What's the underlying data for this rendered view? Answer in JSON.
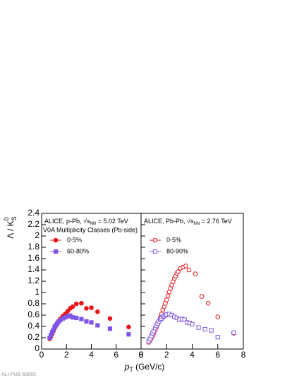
{
  "chart_data": [
    {
      "type": "scatter",
      "annotation": {
        "text": "ALICE, p-Pb, √s",
        "sub": "NN",
        "after": " = 5.02 TeV"
      },
      "subtitle": "V0A Multiplicity Classes (Pb-side)",
      "ylabel": {
        "main": "Λ / K",
        "sup": "0",
        "sub": "S"
      },
      "xlim": [
        0,
        8
      ],
      "ylim": [
        0,
        2.4
      ],
      "xticks": [
        0,
        2,
        4,
        6,
        8
      ],
      "yticks": [
        0,
        0.2,
        0.4,
        0.6,
        0.8,
        1,
        1.2,
        1.4,
        1.6,
        1.8,
        2,
        2.2,
        2.4
      ],
      "series": [
        {
          "name": "0-5%",
          "color": "#e8151b",
          "marker": "filled-circle",
          "x": [
            0.65,
            0.75,
            0.85,
            0.95,
            1.05,
            1.15,
            1.25,
            1.35,
            1.5,
            1.7,
            1.9,
            2.1,
            2.3,
            2.5,
            2.8,
            3.2,
            3.6,
            4.0,
            4.5,
            5.5,
            7.0
          ],
          "values": [
            0.18,
            0.22,
            0.27,
            0.32,
            0.37,
            0.41,
            0.45,
            0.49,
            0.53,
            0.58,
            0.62,
            0.67,
            0.72,
            0.75,
            0.8,
            0.81,
            0.72,
            0.73,
            0.66,
            0.54,
            0.39
          ]
        },
        {
          "name": "60-80%",
          "color": "#7f55e6",
          "marker": "filled-square",
          "x": [
            0.65,
            0.75,
            0.85,
            0.95,
            1.05,
            1.15,
            1.25,
            1.35,
            1.5,
            1.7,
            1.9,
            2.1,
            2.3,
            2.5,
            2.8,
            3.2,
            3.6,
            4.0,
            4.5,
            5.5,
            7.0
          ],
          "values": [
            0.2,
            0.25,
            0.3,
            0.34,
            0.39,
            0.42,
            0.45,
            0.48,
            0.51,
            0.54,
            0.56,
            0.58,
            0.59,
            0.56,
            0.55,
            0.53,
            0.49,
            0.47,
            0.42,
            0.36,
            0.26
          ]
        }
      ]
    },
    {
      "type": "scatter",
      "annotation": {
        "text": "ALICE, Pb-Pb, √s",
        "sub": "NN",
        "after": " = 2.76 TeV"
      },
      "xlim": [
        0,
        8
      ],
      "ylim": [
        0,
        2.4
      ],
      "xticks": [
        0,
        2,
        4,
        6,
        8
      ],
      "series": [
        {
          "name": "0-5%",
          "color": "#e8151b",
          "marker": "open-circle",
          "x": [
            0.6,
            0.7,
            0.8,
            0.9,
            1.0,
            1.1,
            1.2,
            1.3,
            1.4,
            1.5,
            1.6,
            1.7,
            1.8,
            1.9,
            2.0,
            2.1,
            2.2,
            2.3,
            2.4,
            2.5,
            2.6,
            2.7,
            2.8,
            2.9,
            3.1,
            3.3,
            3.5,
            3.75,
            4.25,
            4.75,
            5.25,
            6.0,
            7.25
          ],
          "values": [
            0.12,
            0.15,
            0.19,
            0.23,
            0.28,
            0.33,
            0.38,
            0.44,
            0.5,
            0.56,
            0.62,
            0.69,
            0.75,
            0.81,
            0.87,
            0.94,
            1.01,
            1.07,
            1.13,
            1.19,
            1.25,
            1.29,
            1.34,
            1.37,
            1.43,
            1.45,
            1.47,
            1.4,
            1.33,
            0.93,
            0.81,
            0.57,
            0.28
          ]
        },
        {
          "name": "80-90%",
          "color": "#7f55e6",
          "marker": "open-square",
          "x": [
            0.6,
            0.7,
            0.8,
            0.9,
            1.0,
            1.1,
            1.2,
            1.3,
            1.4,
            1.5,
            1.6,
            1.7,
            1.8,
            1.9,
            2.0,
            2.2,
            2.4,
            2.6,
            2.8,
            3.0,
            3.2,
            3.4,
            3.6,
            3.8,
            4.0,
            4.5,
            5.0,
            5.5,
            6.0,
            7.25
          ],
          "values": [
            0.14,
            0.18,
            0.23,
            0.28,
            0.32,
            0.37,
            0.41,
            0.45,
            0.49,
            0.52,
            0.54,
            0.57,
            0.58,
            0.6,
            0.61,
            0.62,
            0.6,
            0.57,
            0.55,
            0.52,
            0.53,
            0.52,
            0.47,
            0.46,
            0.44,
            0.38,
            0.35,
            0.33,
            0.21,
            0.29
          ]
        }
      ]
    }
  ],
  "xlabel": {
    "main": "p",
    "sub": "T",
    "after": " (GeV/c)"
  },
  "footer": "ALI-PUB-58065"
}
